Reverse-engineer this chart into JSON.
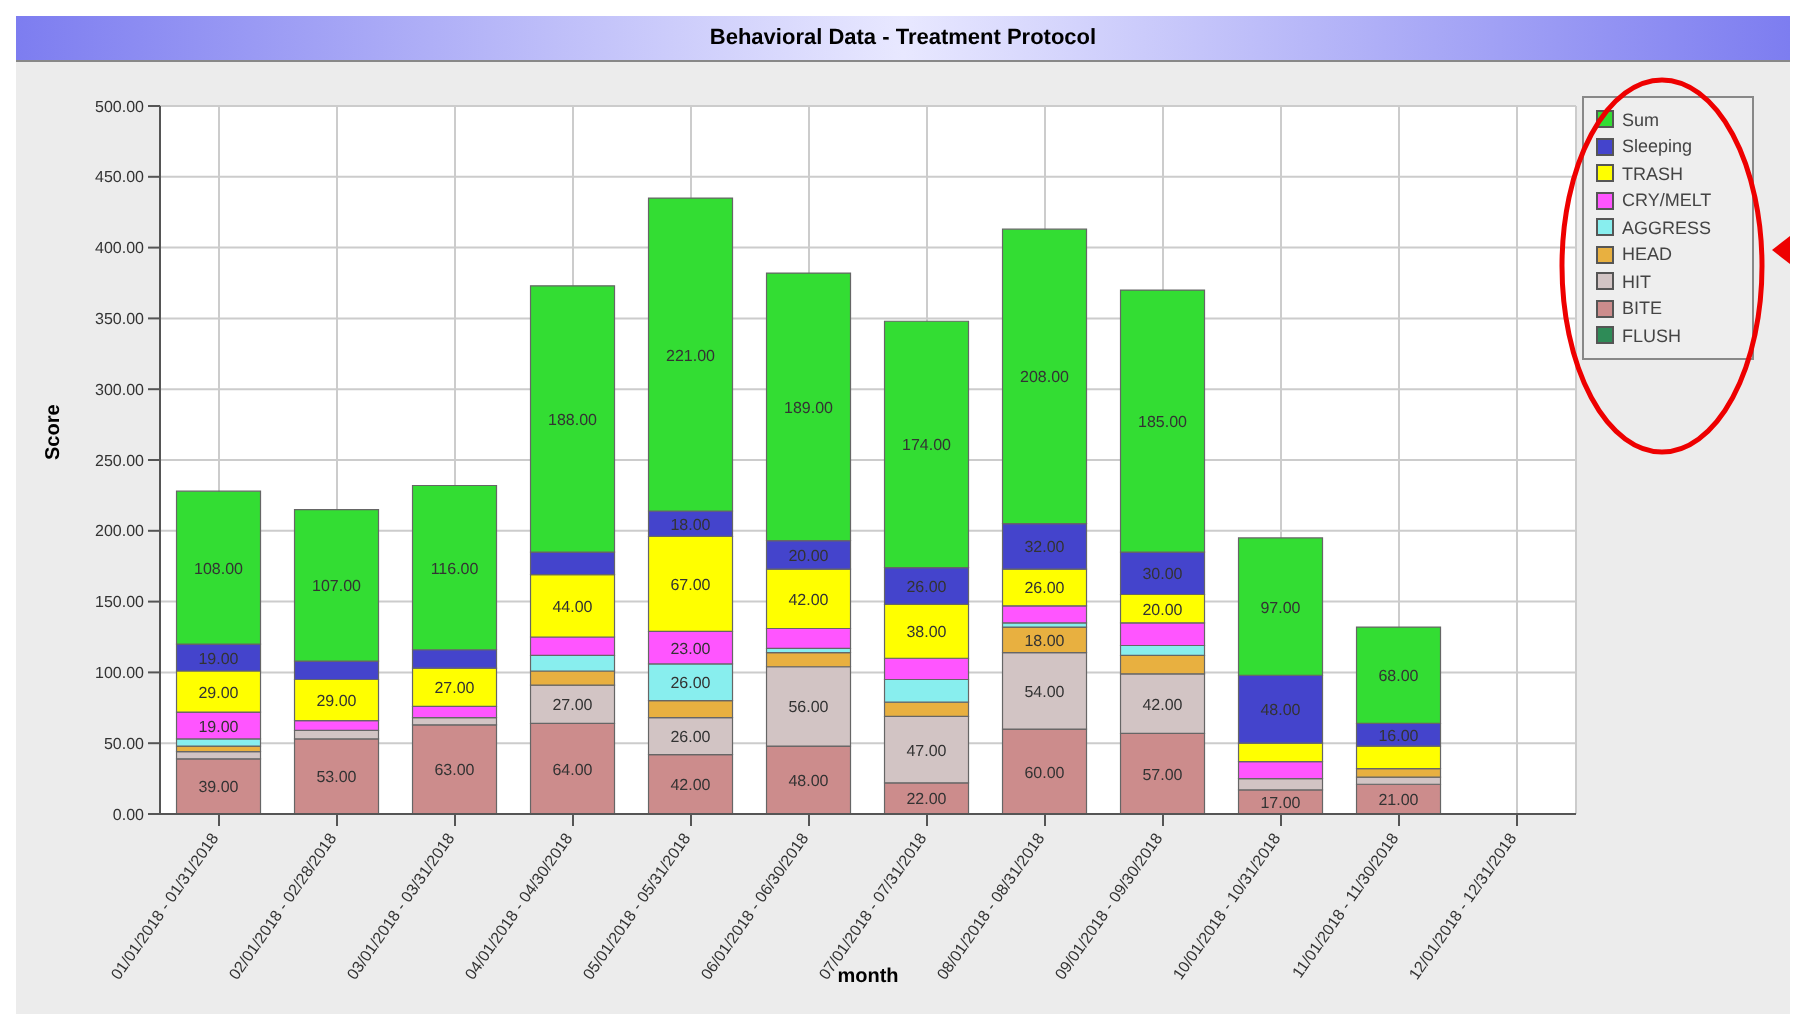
{
  "chart_data": {
    "type": "bar",
    "title": "Behavioral Data - Treatment Protocol",
    "xlabel": "month",
    "ylabel": "Score",
    "categories": [
      "01/01/2018 - 01/31/2018",
      "02/01/2018 - 02/28/2018",
      "03/01/2018 - 03/31/2018",
      "04/01/2018 - 04/30/2018",
      "05/01/2018 - 05/31/2018",
      "06/01/2018 - 06/30/2018",
      "07/01/2018 - 07/31/2018",
      "08/01/2018 - 08/31/2018",
      "09/01/2018 - 09/30/2018",
      "10/01/2018 - 10/31/2018",
      "11/01/2018 - 11/30/2018",
      "12/01/2018 - 12/31/2018"
    ],
    "stacked": true,
    "grid": true,
    "legend": "top right",
    "ylim": [
      0,
      500
    ],
    "yticks": [
      {
        "value": 0,
        "label": "0.00"
      },
      {
        "value": 50,
        "label": "50.00"
      },
      {
        "value": 100,
        "label": "100.00"
      },
      {
        "value": 150,
        "label": "150.00"
      },
      {
        "value": 200,
        "label": "200.00"
      },
      {
        "value": 250,
        "label": "250.00"
      },
      {
        "value": 300,
        "label": "300.00"
      },
      {
        "value": 350,
        "label": "350.00"
      },
      {
        "value": 400,
        "label": "400.00"
      },
      {
        "value": 450,
        "label": "450.00"
      },
      {
        "value": 500,
        "label": "500.00"
      }
    ],
    "series": [
      {
        "name": "FLUSH",
        "color": "#2e8b57",
        "values": [
          null,
          null,
          null,
          null,
          null,
          null,
          null,
          null,
          null,
          null,
          null,
          null
        ],
        "value_labels": [
          null,
          null,
          null,
          null,
          null,
          null,
          null,
          null,
          null,
          null,
          null,
          null
        ]
      },
      {
        "name": "BITE",
        "color": "#cc8c8c",
        "values": [
          39,
          53,
          63,
          64,
          42,
          48,
          22,
          60,
          57,
          17,
          21,
          null
        ],
        "value_labels": [
          "39.00",
          "53.00",
          "63.00",
          "64.00",
          "42.00",
          "48.00",
          "22.00",
          "60.00",
          "57.00",
          "17.00",
          "21.00",
          null
        ]
      },
      {
        "name": "HIT",
        "color": "#d2c4c4",
        "values": [
          5,
          6,
          5,
          27,
          26,
          56,
          47,
          54,
          42,
          8,
          5,
          null
        ],
        "value_labels": [
          null,
          null,
          null,
          "27.00",
          "26.00",
          "56.00",
          "47.00",
          "54.00",
          "42.00",
          null,
          null,
          null
        ]
      },
      {
        "name": "HEAD",
        "color": "#e8b040",
        "values": [
          4,
          null,
          null,
          10,
          12,
          10,
          10,
          18,
          13,
          null,
          6,
          null
        ],
        "value_labels": [
          null,
          null,
          null,
          null,
          null,
          null,
          null,
          "18.00",
          null,
          null,
          null,
          null
        ]
      },
      {
        "name": "AGGRESS",
        "color": "#88eeee",
        "values": [
          5,
          null,
          null,
          11,
          26,
          3,
          16,
          3,
          7,
          null,
          null,
          null
        ],
        "value_labels": [
          null,
          null,
          null,
          null,
          "26.00",
          null,
          null,
          null,
          null,
          null,
          null,
          null
        ]
      },
      {
        "name": "CRY/MELT",
        "color": "#ff55ff",
        "values": [
          19,
          7,
          8,
          13,
          23,
          14,
          15,
          12,
          16,
          12,
          null,
          null
        ],
        "value_labels": [
          "19.00",
          null,
          null,
          null,
          "23.00",
          null,
          null,
          null,
          null,
          null,
          null,
          null
        ]
      },
      {
        "name": "TRASH",
        "color": "#ffff00",
        "values": [
          29,
          29,
          27,
          44,
          67,
          42,
          38,
          26,
          20,
          13,
          16,
          null
        ],
        "value_labels": [
          "29.00",
          "29.00",
          "27.00",
          "44.00",
          "67.00",
          "42.00",
          "38.00",
          "26.00",
          "20.00",
          null,
          null,
          null
        ]
      },
      {
        "name": "Sleeping",
        "color": "#4444cc",
        "values": [
          19,
          13,
          13,
          16,
          18,
          20,
          26,
          32,
          30,
          48,
          16,
          null
        ],
        "value_labels": [
          "19.00",
          null,
          null,
          null,
          "18.00",
          "20.00",
          "26.00",
          "32.00",
          "30.00",
          "48.00",
          "16.00",
          null
        ]
      },
      {
        "name": "Sum",
        "color": "#33dd33",
        "values": [
          108,
          107,
          116,
          188,
          221,
          189,
          174,
          208,
          185,
          97,
          68,
          null
        ],
        "value_labels": [
          "108.00",
          "107.00",
          "116.00",
          "188.00",
          "221.00",
          "189.00",
          "174.00",
          "208.00",
          "185.00",
          "97.00",
          "68.00",
          null
        ]
      }
    ]
  }
}
